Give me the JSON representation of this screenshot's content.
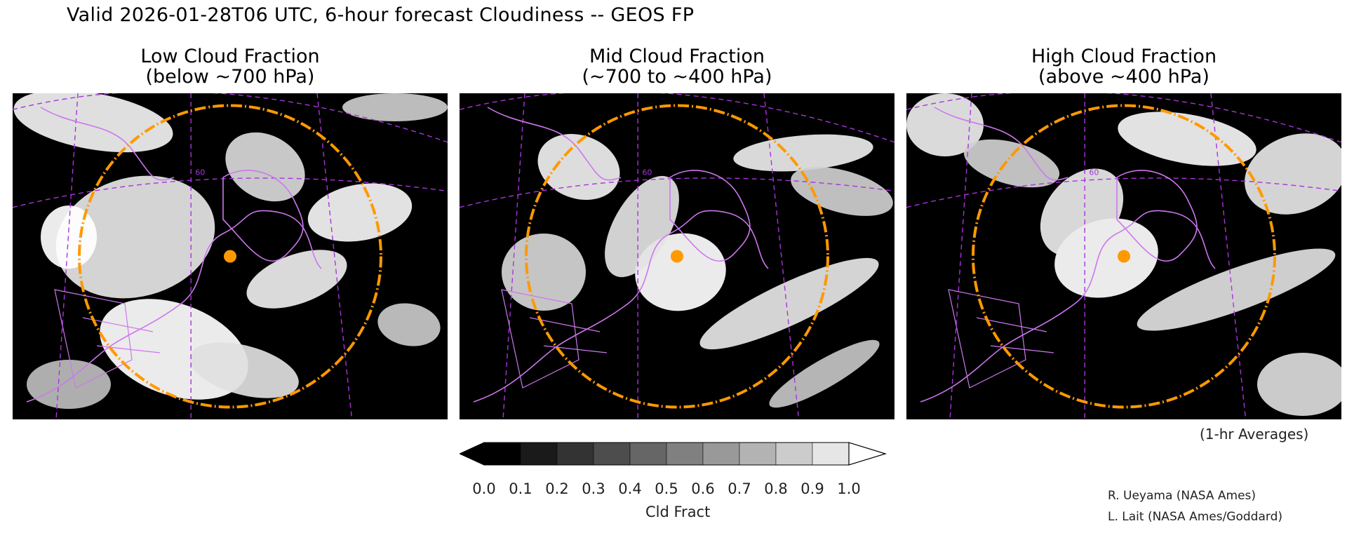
{
  "header": {
    "title": "Valid 2026-01-28T06 UTC, 6-hour forecast Cloudiness -- GEOS FP"
  },
  "panels": [
    {
      "title_line1": "Low Cloud Fraction",
      "title_line2": "(below ~700 hPa)"
    },
    {
      "title_line1": "Mid Cloud Fraction",
      "title_line2": "(~700 to ~400 hPa)"
    },
    {
      "title_line1": "High Cloud Fraction",
      "title_line2": "(above ~400 hPa)"
    }
  ],
  "colorbar": {
    "title": "Cld Fract",
    "ticks": [
      "0.0",
      "0.1",
      "0.2",
      "0.3",
      "0.4",
      "0.5",
      "0.6",
      "0.7",
      "0.8",
      "0.9",
      "1.0"
    ],
    "colors": [
      "#000000",
      "#1a1a1a",
      "#333333",
      "#4d4d4d",
      "#666666",
      "#808080",
      "#999999",
      "#b3b3b3",
      "#cccccc",
      "#e6e6e6"
    ],
    "under_color": "#000000",
    "over_color": "#ffffff"
  },
  "annotations": {
    "averaging": "(1-hr Averages)",
    "credit_1": "R. Ueyama (NASA Ames)",
    "credit_2": "L. Lait (NASA Ames/Goddard)"
  },
  "map_style": {
    "boundary_color": "#cc77ee",
    "gridline_color": "#aa33dd",
    "range_ring_color": "#ff9900",
    "marker_color": "#ff9900",
    "graticule_label": "60"
  }
}
